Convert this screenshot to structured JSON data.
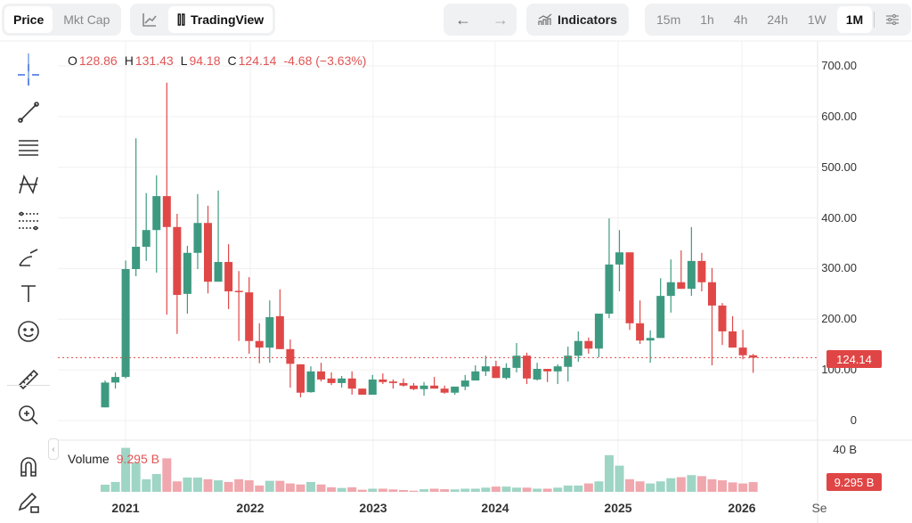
{
  "toolbar": {
    "price": "Price",
    "mkt_cap": "Mkt Cap",
    "tradingview": "TradingView",
    "indicators": "Indicators",
    "timeframes": [
      "15m",
      "1h",
      "4h",
      "24h",
      "1W",
      "1M"
    ],
    "active_timeframe": "1M"
  },
  "legend": {
    "o_label": "O",
    "o": "128.86",
    "h_label": "H",
    "h": "131.43",
    "l_label": "L",
    "l": "94.18",
    "c_label": "C",
    "c": "124.14",
    "change": "-4.68 (−3.63%)"
  },
  "y_axis": [
    "700.00",
    "600.00",
    "500.00",
    "400.00",
    "300.00",
    "200.00",
    "100.00",
    "0"
  ],
  "volume_axis": "40 B",
  "price_badge": "124.14",
  "volume": {
    "label": "Volume",
    "value": "9.295 B",
    "badge": "9.295 B"
  },
  "x_axis": [
    "2021",
    "2022",
    "2023",
    "2024",
    "2025",
    "2026",
    "Se"
  ],
  "colors": {
    "up": "#3d9a80",
    "down": "#e04848",
    "up_vol": "#9fd5c5",
    "down_vol": "#f0a7ad",
    "grid": "#f0f0f0"
  },
  "chart_data": {
    "type": "candlestick",
    "interval": "1M",
    "start": "2020-11",
    "ylim": [
      0,
      700
    ],
    "volume_ylim_B": [
      0,
      40
    ],
    "ohlc": [
      [
        26,
        79,
        26,
        75
      ],
      [
        75,
        95,
        63,
        86
      ],
      [
        86,
        316,
        83,
        299
      ],
      [
        299,
        557,
        285,
        343
      ],
      [
        343,
        449,
        315,
        376
      ],
      [
        376,
        484,
        292,
        443
      ],
      [
        443,
        667,
        209,
        382
      ],
      [
        382,
        408,
        171,
        248
      ],
      [
        250,
        345,
        211,
        331
      ],
      [
        331,
        447,
        299,
        390
      ],
      [
        390,
        424,
        251,
        274
      ],
      [
        274,
        454,
        274,
        313
      ],
      [
        313,
        348,
        220,
        255
      ],
      [
        256,
        295,
        157,
        254
      ],
      [
        253,
        283,
        132,
        157
      ],
      [
        157,
        192,
        113,
        144
      ],
      [
        144,
        237,
        114,
        204
      ],
      [
        206,
        259,
        141,
        141
      ],
      [
        141,
        160,
        65,
        112
      ],
      [
        111,
        111,
        46,
        55
      ],
      [
        56,
        107,
        55,
        97
      ],
      [
        97,
        114,
        77,
        81
      ],
      [
        83,
        95,
        70,
        74
      ],
      [
        74,
        88,
        65,
        83
      ],
      [
        83,
        97,
        51,
        63
      ],
      [
        63,
        63,
        51,
        51
      ],
      [
        51,
        90,
        51,
        81
      ],
      [
        81,
        93,
        72,
        76
      ],
      [
        77,
        81,
        63,
        74
      ],
      [
        74,
        83,
        67,
        69
      ],
      [
        69,
        74,
        60,
        62
      ],
      [
        62,
        76,
        49,
        69
      ],
      [
        69,
        86,
        63,
        63
      ],
      [
        63,
        69,
        53,
        55
      ],
      [
        55,
        67,
        51,
        67
      ],
      [
        67,
        90,
        60,
        79
      ],
      [
        79,
        109,
        79,
        97
      ],
      [
        97,
        128,
        88,
        107
      ],
      [
        107,
        118,
        84,
        84
      ],
      [
        84,
        113,
        81,
        104
      ],
      [
        104,
        153,
        95,
        128
      ],
      [
        128,
        134,
        72,
        83
      ],
      [
        81,
        114,
        79,
        102
      ],
      [
        102,
        102,
        76,
        97
      ],
      [
        97,
        111,
        72,
        107
      ],
      [
        106,
        146,
        77,
        128
      ],
      [
        128,
        176,
        116,
        157
      ],
      [
        157,
        164,
        132,
        142
      ],
      [
        142,
        211,
        125,
        211
      ],
      [
        211,
        399,
        202,
        308
      ],
      [
        308,
        376,
        255,
        332
      ],
      [
        332,
        332,
        179,
        192
      ],
      [
        192,
        237,
        151,
        158
      ],
      [
        158,
        178,
        114,
        163
      ],
      [
        163,
        281,
        163,
        246
      ],
      [
        246,
        318,
        213,
        273
      ],
      [
        273,
        336,
        260,
        260
      ],
      [
        260,
        382,
        246,
        315
      ],
      [
        315,
        331,
        255,
        273
      ],
      [
        273,
        301,
        109,
        227
      ],
      [
        227,
        232,
        149,
        176
      ],
      [
        176,
        206,
        144,
        144
      ],
      [
        144,
        179,
        121,
        128.86
      ],
      [
        128.86,
        131.43,
        94.18,
        124.14
      ]
    ],
    "volume_B": [
      6.8,
      9.4,
      42,
      28,
      12,
      17,
      32,
      10,
      13.6,
      13.6,
      12,
      11,
      9.4,
      12,
      11,
      6,
      10.5,
      10.5,
      8,
      7,
      9.4,
      7,
      4.3,
      3.7,
      4.3,
      2,
      3,
      3,
      2.3,
      1.7,
      1.1,
      2.5,
      3,
      2.5,
      2.3,
      3,
      3,
      4,
      5,
      5,
      4,
      4,
      3,
      3,
      4,
      6,
      6,
      8,
      10,
      35,
      25,
      12,
      10,
      8,
      10,
      13,
      14,
      16,
      15,
      12,
      11,
      9,
      8,
      9.295
    ],
    "last_price": 124.14
  }
}
